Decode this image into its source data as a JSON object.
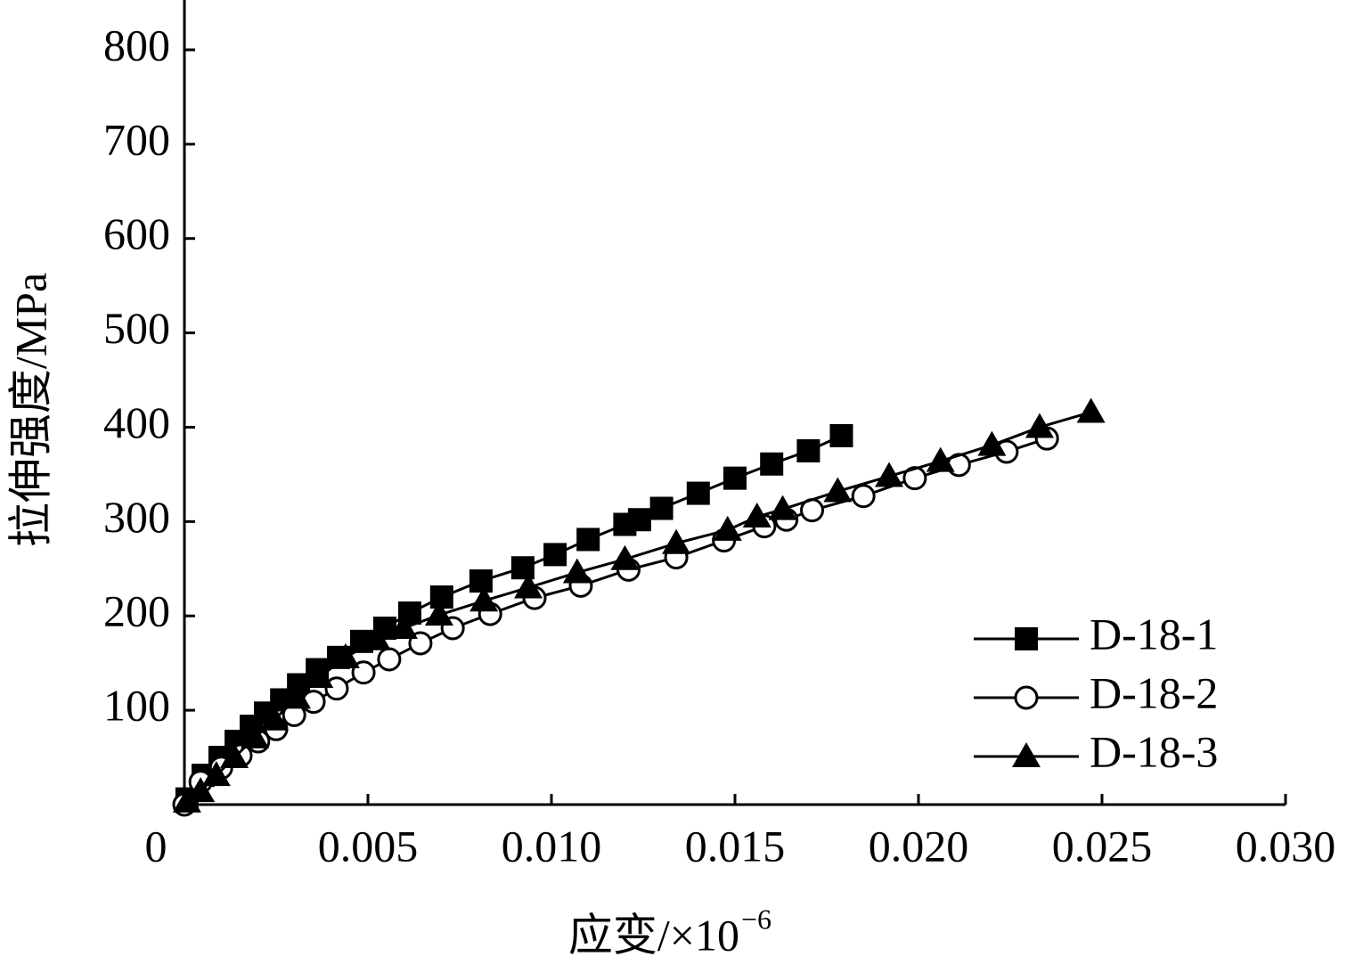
{
  "chart_data": {
    "type": "line",
    "ylabel": "拉伸强度/MPa",
    "xlabel": "应变/×10",
    "xlabel_exponent": "−6",
    "xlim": [
      0,
      0.03
    ],
    "ylim": [
      0,
      850
    ],
    "xticks": [
      0,
      0.005,
      {
        "value": 0.01,
        "label": "0.010"
      },
      0.015,
      {
        "value": 0.02,
        "label": "0.020"
      },
      0.025,
      {
        "value": 0.03,
        "label": "0.030"
      }
    ],
    "yticks": [
      100,
      200,
      300,
      400,
      500,
      600,
      700,
      800
    ],
    "legend": "lower right",
    "series": [
      {
        "name": "D-18-1",
        "marker": "square",
        "color": "#000000",
        "x": [
          7e-05,
          0.00051,
          0.00097,
          0.00141,
          0.00182,
          0.00221,
          0.00265,
          0.00311,
          0.00362,
          0.0042,
          0.00483,
          0.00546,
          0.00614,
          0.00701,
          0.00808,
          0.00922,
          0.0101,
          0.011,
          0.012,
          0.0124,
          0.013,
          0.014,
          0.015,
          0.016,
          0.017,
          0.0179
        ],
        "values": [
          6,
          31,
          50,
          67,
          83,
          97,
          111,
          127,
          143,
          156,
          173,
          187,
          203,
          220,
          237,
          251,
          265,
          281,
          297,
          302,
          314,
          330,
          346,
          361,
          375,
          391
        ]
      },
      {
        "name": "D-18-2",
        "marker": "circle",
        "color": "#000000",
        "x": [
          0,
          0.00044,
          0.001,
          0.00153,
          0.00201,
          0.0025,
          0.00299,
          0.00352,
          0.00415,
          0.00488,
          0.00558,
          0.00643,
          0.00731,
          0.00833,
          0.00954,
          0.0108,
          0.0121,
          0.0134,
          0.0147,
          0.0158,
          0.0164,
          0.0171,
          0.0185,
          0.0199,
          0.0211,
          0.0224,
          0.0235
        ],
        "values": [
          0,
          24,
          39,
          52,
          67,
          80,
          95,
          109,
          123,
          140,
          154,
          171,
          187,
          202,
          219,
          232,
          249,
          262,
          280,
          295,
          302,
          312,
          327,
          346,
          360,
          374,
          388
        ]
      },
      {
        "name": "D-18-3",
        "marker": "triangle",
        "color": "#000000",
        "x": [
          7e-05,
          0.00044,
          0.00087,
          0.00136,
          0.00192,
          0.00245,
          0.00306,
          0.00367,
          0.00439,
          0.00524,
          0.00597,
          0.00694,
          0.00816,
          0.00937,
          0.0107,
          0.012,
          0.0134,
          0.0148,
          0.0156,
          0.0163,
          0.0178,
          0.0192,
          0.0206,
          0.022,
          0.0233,
          0.0247
        ],
        "values": [
          3,
          14,
          31,
          50,
          71,
          90,
          113,
          135,
          156,
          175,
          187,
          201,
          216,
          230,
          246,
          260,
          277,
          291,
          305,
          313,
          332,
          348,
          364,
          381,
          400,
          416
        ]
      }
    ]
  }
}
